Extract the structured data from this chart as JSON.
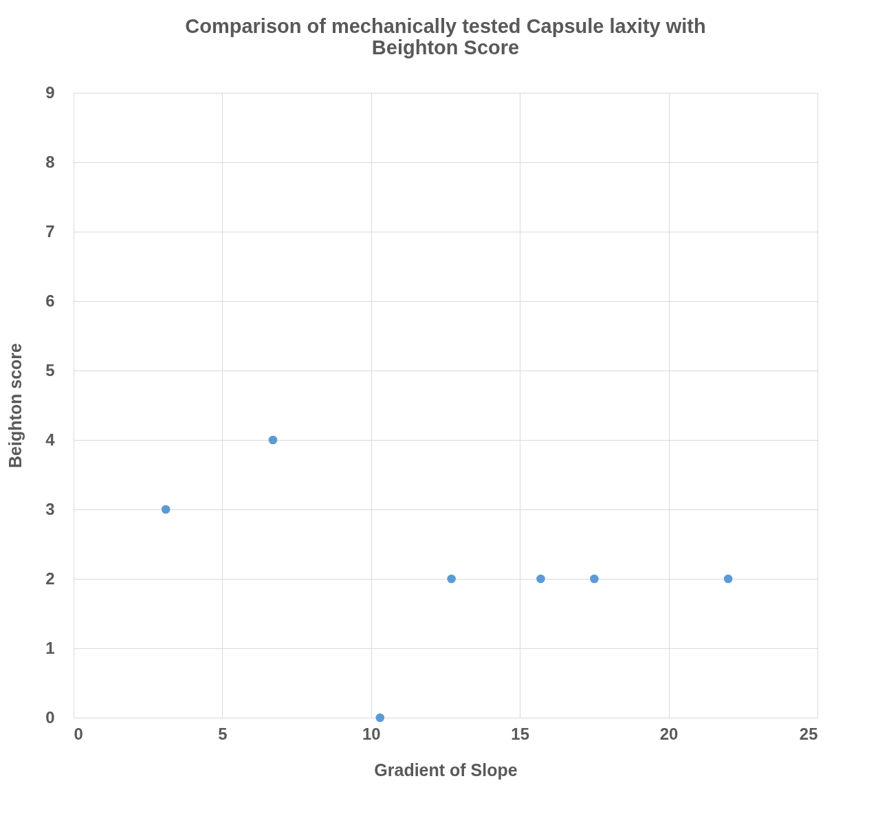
{
  "chart_data": {
    "type": "scatter",
    "title": "Comparison of mechanically tested Capsule laxity with Beighton Score",
    "xlabel": "Gradient of Slope",
    "ylabel": "Beighton score",
    "x": [
      3.1,
      6.7,
      10.3,
      12.7,
      15.7,
      17.5,
      22.0
    ],
    "series": [
      {
        "color": "#5b9bd5",
        "values": [
          3,
          4,
          0,
          2,
          2,
          2,
          2
        ]
      }
    ],
    "xlim": [
      0,
      25
    ],
    "xticks": [
      0,
      5,
      10,
      15,
      20,
      25
    ],
    "ylim": [
      0,
      9
    ],
    "yticks": [
      0,
      1,
      2,
      3,
      4,
      5,
      6,
      7,
      8,
      9
    ],
    "grid": true,
    "marker": "circle"
  }
}
